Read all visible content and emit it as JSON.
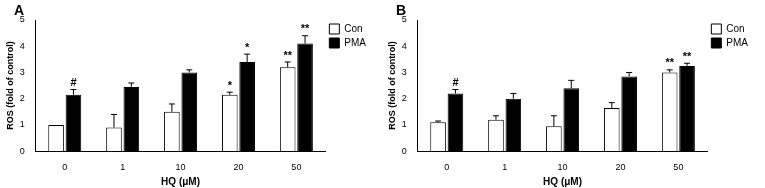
{
  "chart_data": [
    {
      "type": "bar",
      "title": "A",
      "x_label": "HQ (μM)",
      "y_label": "ROS (fold of control)",
      "categories": [
        "0",
        "1",
        "10",
        "20",
        "50"
      ],
      "ylim": [
        0,
        5
      ],
      "yticks": [
        0,
        1,
        2,
        3,
        4,
        5
      ],
      "grid": false,
      "legend": "right",
      "series": [
        {
          "name": "Con",
          "color": "#ffffff",
          "values": [
            1.0,
            0.9,
            1.5,
            2.15,
            3.2
          ],
          "errors": [
            0.0,
            0.5,
            0.3,
            0.1,
            0.2
          ],
          "annotations": [
            null,
            null,
            null,
            "*",
            "**"
          ]
        },
        {
          "name": "PMA",
          "color": "#000000",
          "values": [
            2.15,
            2.45,
            3.0,
            3.4,
            4.1
          ],
          "errors": [
            0.2,
            0.15,
            0.1,
            0.3,
            0.3
          ],
          "annotations": [
            "#",
            null,
            null,
            "*",
            "**"
          ]
        }
      ]
    },
    {
      "type": "bar",
      "title": "B",
      "x_label": "HQ (μM)",
      "y_label": "ROS (fold of control)",
      "categories": [
        "0",
        "1",
        "10",
        "20",
        "50"
      ],
      "ylim": [
        0,
        5
      ],
      "yticks": [
        0,
        1,
        2,
        3,
        4,
        5
      ],
      "grid": false,
      "legend": "right",
      "series": [
        {
          "name": "Con",
          "color": "#ffffff",
          "values": [
            1.1,
            1.2,
            0.95,
            1.65,
            3.0
          ],
          "errors": [
            0.05,
            0.15,
            0.4,
            0.2,
            0.1
          ],
          "annotations": [
            null,
            null,
            null,
            null,
            "**"
          ]
        },
        {
          "name": "PMA",
          "color": "#000000",
          "values": [
            2.2,
            2.0,
            2.4,
            2.85,
            3.25
          ],
          "errors": [
            0.15,
            0.2,
            0.3,
            0.15,
            0.1
          ],
          "annotations": [
            "#",
            null,
            null,
            null,
            "**"
          ]
        }
      ]
    }
  ]
}
